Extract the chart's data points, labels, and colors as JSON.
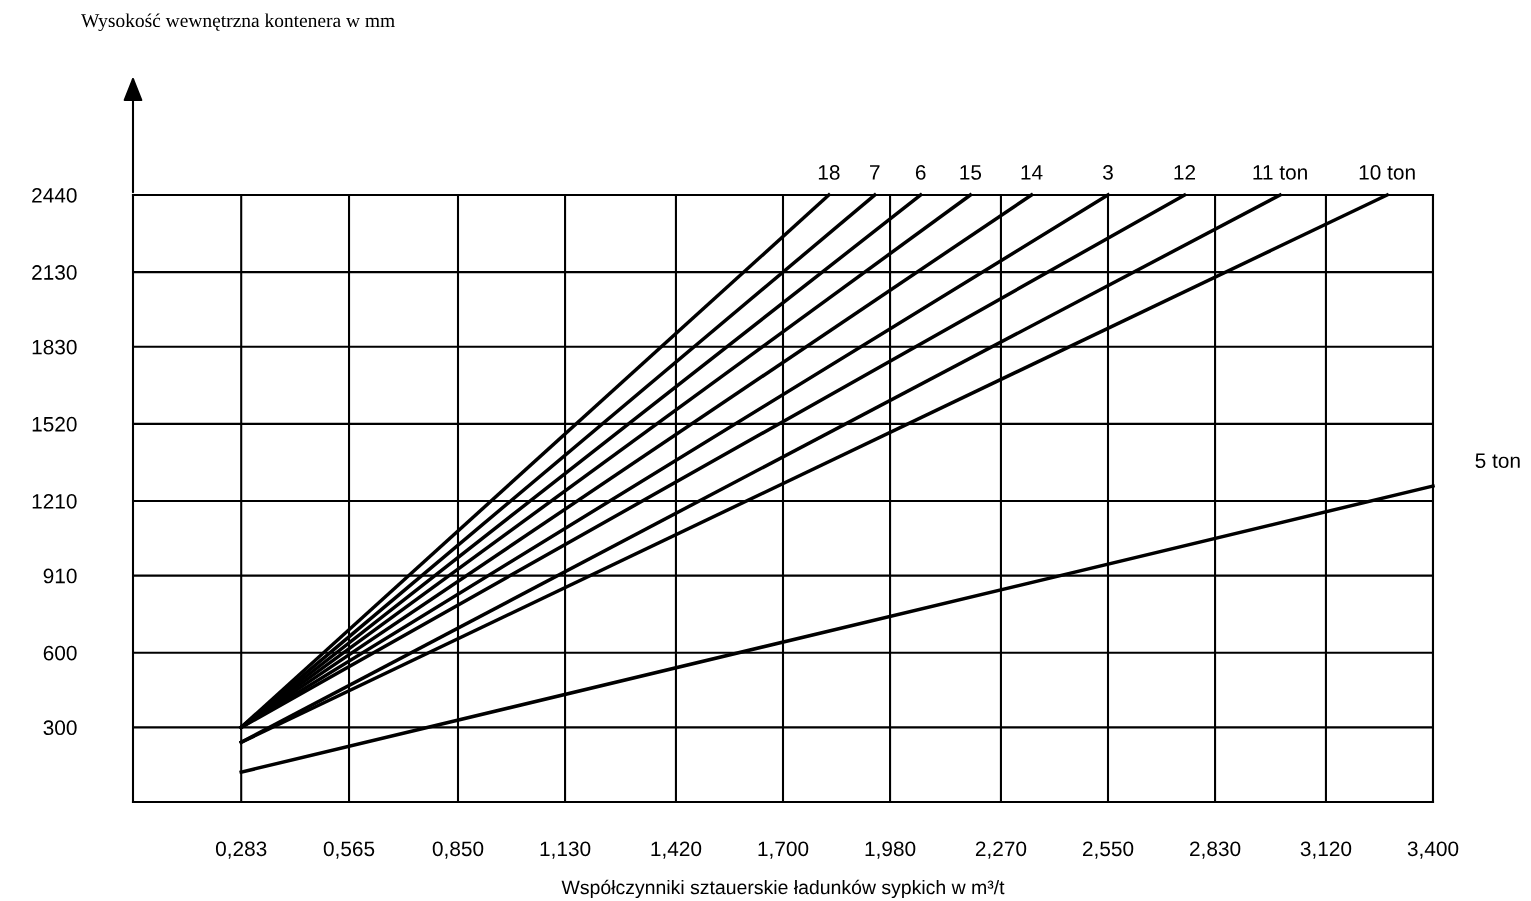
{
  "chart_data": {
    "type": "line",
    "annotations": [
      "Wysokość wewnętrzna kontenera w mm"
    ],
    "xlabel": "Współczynniki sztauerskie ładunków sypkich w m³/t",
    "xlim": [
      0,
      3.4
    ],
    "ylim": [
      0,
      2440
    ],
    "xticks": [
      {
        "value": 0.283,
        "label": "0,283"
      },
      {
        "value": 0.565,
        "label": "0,565"
      },
      {
        "value": 0.85,
        "label": "0,850"
      },
      {
        "value": 1.13,
        "label": "1,130"
      },
      {
        "value": 1.42,
        "label": "1,420"
      },
      {
        "value": 1.7,
        "label": "1,700"
      },
      {
        "value": 1.98,
        "label": "1,980"
      },
      {
        "value": 2.27,
        "label": "2,270"
      },
      {
        "value": 2.55,
        "label": "2,550"
      },
      {
        "value": 2.83,
        "label": "2,830"
      },
      {
        "value": 3.12,
        "label": "3,120"
      },
      {
        "value": 3.4,
        "label": "3,400"
      }
    ],
    "yticks": [
      300,
      600,
      910,
      1210,
      1520,
      1830,
      2130,
      2440
    ],
    "grid": true,
    "marker": "none",
    "line_style": "solid",
    "series": [
      {
        "name": "18",
        "color": "#000000",
        "x": [
          0.283,
          1.82
        ],
        "values": [
          300,
          2440
        ]
      },
      {
        "name": "7",
        "color": "#000000",
        "x": [
          0.283,
          1.94
        ],
        "values": [
          300,
          2440
        ]
      },
      {
        "name": "6",
        "color": "#000000",
        "x": [
          0.283,
          2.06
        ],
        "values": [
          300,
          2440
        ]
      },
      {
        "name": "15",
        "color": "#000000",
        "x": [
          0.283,
          2.19
        ],
        "values": [
          300,
          2440
        ]
      },
      {
        "name": "14",
        "color": "#000000",
        "x": [
          0.283,
          2.35
        ],
        "values": [
          300,
          2440
        ]
      },
      {
        "name": "3",
        "color": "#000000",
        "x": [
          0.283,
          2.55
        ],
        "values": [
          300,
          2440
        ]
      },
      {
        "name": "12",
        "color": "#000000",
        "x": [
          0.283,
          2.75
        ],
        "values": [
          300,
          2440
        ]
      },
      {
        "name": "11 ton",
        "color": "#000000",
        "x": [
          0.283,
          3.0
        ],
        "values": [
          240,
          2440
        ]
      },
      {
        "name": "10 ton",
        "color": "#000000",
        "x": [
          0.283,
          3.28
        ],
        "values": [
          240,
          2440
        ]
      },
      {
        "name": "5 ton",
        "color": "#000000",
        "x": [
          0.283,
          3.4
        ],
        "values": [
          120,
          1270
        ]
      }
    ]
  }
}
